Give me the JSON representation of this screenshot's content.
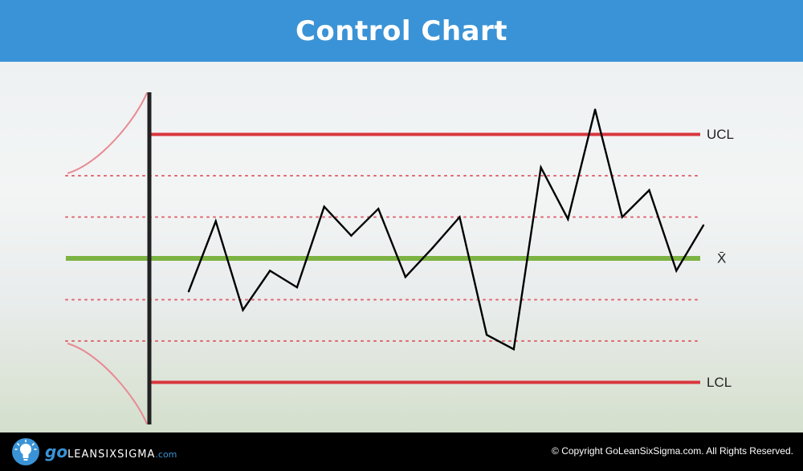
{
  "header": {
    "title": "Control Chart"
  },
  "footer": {
    "brand_go": "go",
    "brand_name": "LEANSIXSIGMA",
    "brand_tld": ".com",
    "copyright": "© Copyright GoLeanSixSigma.com. All Rights Reserved."
  },
  "colors": {
    "header_bg": "#3a93d6",
    "limit_line": "#d9363e",
    "center_line": "#7cb342",
    "sigma_lines": "#e06670",
    "data_line": "#000000"
  },
  "icons": [
    "lightbulb-icon"
  ],
  "chart_data": {
    "type": "line",
    "title": "Control Chart",
    "limit_labels": {
      "ucl": "UCL",
      "center": "X̄",
      "lcl": "LCL"
    },
    "levels": {
      "ucl": 3,
      "sigma_plus_2": 2,
      "sigma_plus_1": 1,
      "center": 0,
      "sigma_minus_1": -1,
      "sigma_minus_2": -2,
      "lcl": -3
    },
    "series": [
      {
        "values": [
          -0.8,
          0.9,
          -1.25,
          -0.3,
          -0.7,
          1.25,
          0.55,
          1.2,
          -0.45,
          0.25,
          1.0,
          -1.85,
          -2.2,
          2.2,
          0.95,
          3.6,
          1.0,
          1.65,
          -0.3,
          0.8
        ]
      }
    ],
    "grid": false
  }
}
